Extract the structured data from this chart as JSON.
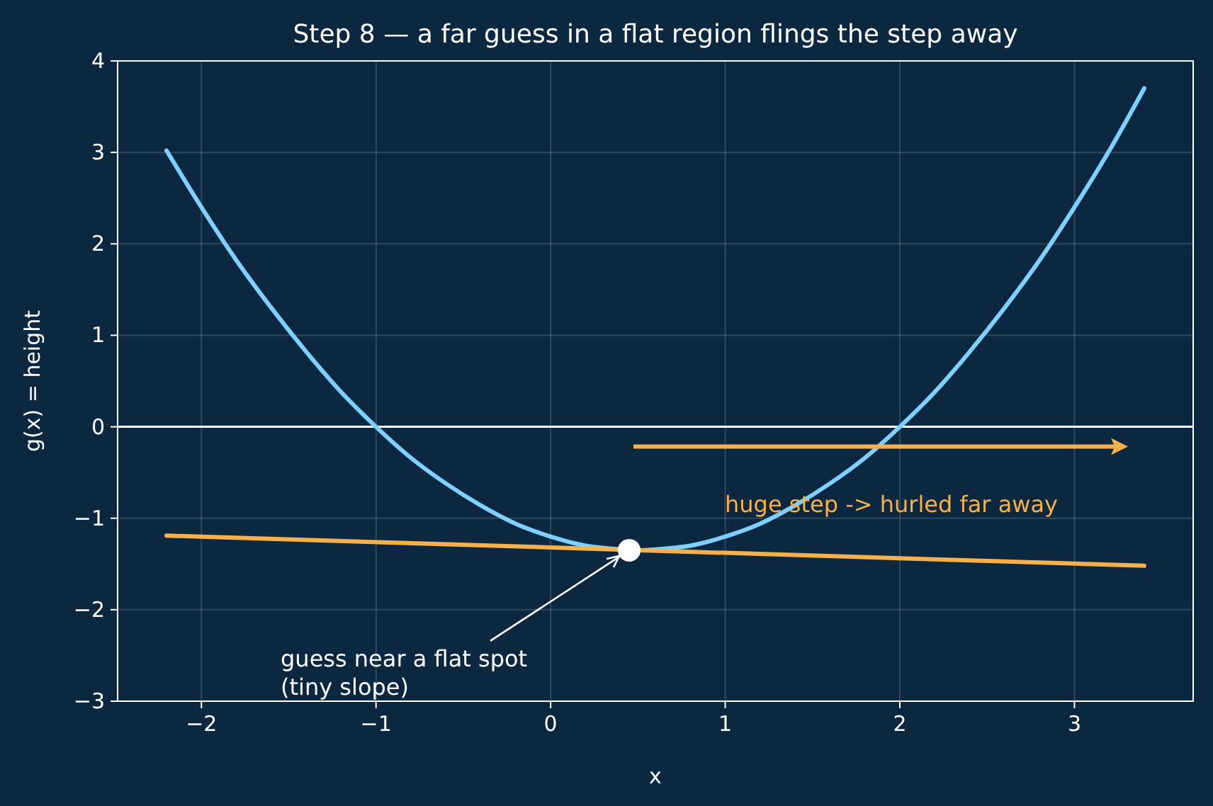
{
  "chart_data": {
    "type": "line",
    "title": "Step 8 — a far guess in a flat region flings the step away",
    "xlabel": "x",
    "ylabel": "g(x) = height",
    "xlim": [
      -2.48,
      3.68
    ],
    "ylim": [
      -3,
      4
    ],
    "xticks": [
      -2,
      -1,
      0,
      1,
      2,
      3
    ],
    "yticks": [
      -3,
      -2,
      -1,
      0,
      1,
      2,
      3,
      4
    ],
    "grid": true,
    "series": [
      {
        "color": "#7fd0ff",
        "x": [
          -2.2,
          -2,
          -1.8,
          -1.6,
          -1.4,
          -1.2,
          -1,
          -0.8,
          -0.6,
          -0.4,
          -0.2,
          0,
          0.2,
          0.4,
          0.5,
          0.6,
          0.8,
          1,
          1.2,
          1.4,
          1.6,
          1.8,
          2,
          2.2,
          2.4,
          2.6,
          2.8,
          3,
          3.2,
          3.4
        ],
        "values": [
          3.02,
          2.4,
          1.82,
          1.3,
          0.82,
          0.38,
          0,
          -0.34,
          -0.62,
          -0.86,
          -1.06,
          -1.2,
          -1.3,
          -1.34,
          -1.35,
          -1.34,
          -1.3,
          -1.2,
          -1.06,
          -0.86,
          -0.62,
          -0.34,
          0,
          0.38,
          0.82,
          1.3,
          1.82,
          2.4,
          3.02,
          3.7
        ]
      },
      {
        "type": "line",
        "color": "#f7b04a",
        "x": [
          -2.2,
          3.4
        ],
        "values": [
          -1.19,
          -1.52
        ]
      },
      {
        "type": "scatter",
        "color": "#ffffff",
        "x": [
          0.45
        ],
        "values": [
          -1.35
        ]
      }
    ],
    "ref_lines": [
      {
        "axis": "y",
        "value": 0,
        "color": "#ffffff"
      }
    ],
    "annotations": [
      "huge step -> hurled far away",
      {
        "text": "guess near a flat spot\n(tiny slope)",
        "x": 0.45,
        "y": -1.35
      }
    ]
  }
}
